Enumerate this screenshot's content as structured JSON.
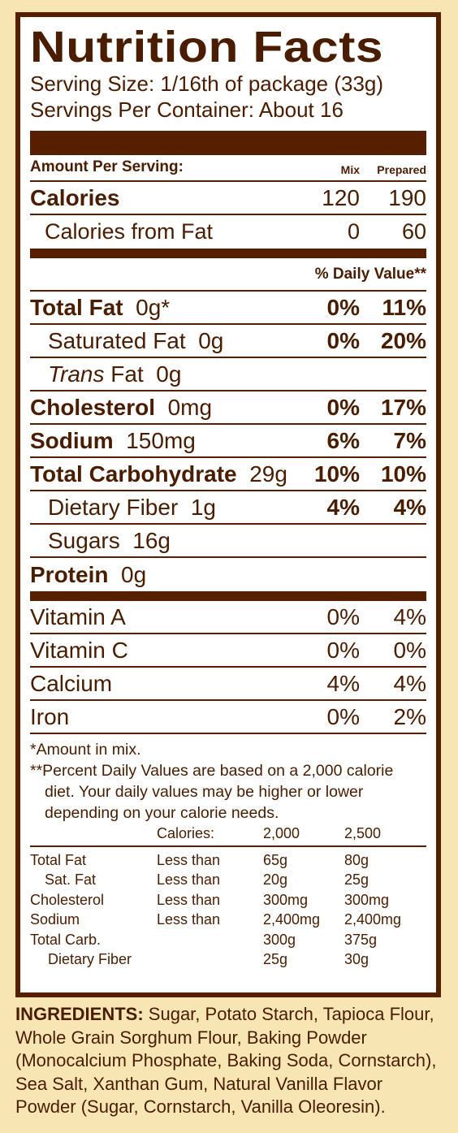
{
  "title": "Nutrition Facts",
  "serving_size": "Serving Size:  1/16th of package (33g)",
  "servings_per_container": "Servings Per Container:  About 16",
  "amount_header": "Amount Per Serving:",
  "col_mix": "Mix",
  "col_prepared": "Prepared",
  "calories": {
    "label": "Calories",
    "mix": "120",
    "prepared": "190"
  },
  "calories_fat": {
    "label": "Calories from Fat",
    "mix": "0",
    "prepared": "60"
  },
  "dv_header": "% Daily Value**",
  "nutrients": [
    {
      "name": "Total Fat",
      "amount": "0g*",
      "mix": "0%",
      "prepared": "11%"
    },
    {
      "name": "Saturated Fat",
      "amount": "0g",
      "mix": "0%",
      "prepared": "20%"
    },
    {
      "name": "Trans",
      "name_suffix": " Fat",
      "amount": "0g",
      "mix": "",
      "prepared": ""
    },
    {
      "name": "Cholesterol",
      "amount": "0mg",
      "mix": "0%",
      "prepared": "17%"
    },
    {
      "name": "Sodium",
      "amount": "150mg",
      "mix": "6%",
      "prepared": "7%"
    },
    {
      "name": "Total Carbohydrate",
      "amount": "29g",
      "mix": "10%",
      "prepared": "10%"
    },
    {
      "name": "Dietary Fiber",
      "amount": "1g",
      "mix": "4%",
      "prepared": "4%"
    },
    {
      "name": "Sugars",
      "amount": "16g",
      "mix": "",
      "prepared": ""
    },
    {
      "name": "Protein",
      "amount": "0g",
      "mix": "",
      "prepared": ""
    }
  ],
  "vitamins": [
    {
      "name": "Vitamin A",
      "mix": "0%",
      "prepared": "4%"
    },
    {
      "name": "Vitamin C",
      "mix": "0%",
      "prepared": "0%"
    },
    {
      "name": "Calcium",
      "mix": "4%",
      "prepared": "4%"
    },
    {
      "name": "Iron",
      "mix": "0%",
      "prepared": "2%"
    }
  ],
  "footnote_1": "*Amount in mix.",
  "footnote_2a": "**Percent Daily Values are based on a 2,000 calorie",
  "footnote_2b": "diet. Your daily values may be higher or lower",
  "footnote_2c": "depending on your calorie needs.",
  "dv_table": {
    "header": [
      "",
      "Calories:",
      "2,000",
      "2,500"
    ],
    "rows": [
      [
        "Total Fat",
        "Less than",
        "65g",
        "80g"
      ],
      [
        "Sat. Fat",
        "Less than",
        "20g",
        "25g"
      ],
      [
        "Cholesterol",
        "Less than",
        "300mg",
        "300mg"
      ],
      [
        "Sodium",
        "Less than",
        "2,400mg",
        "2,400mg"
      ],
      [
        "Total Carb.",
        "",
        "300g",
        "375g"
      ],
      [
        "Dietary Fiber",
        "",
        "25g",
        "30g"
      ]
    ]
  },
  "ingredients_label": "INGREDIENTS:",
  "ingredients_text": " Sugar, Potato Starch, Tapioca Flour, Whole Grain Sorghum Flour, Baking Powder (Monocalcium Phosphate, Baking Soda, Cornstarch), Sea Salt, Xanthan Gum, Natural Vanilla Flavor Powder (Sugar, Cornstarch, Vanilla Oleoresin).",
  "colors": {
    "brown": "#561f00",
    "background": "#f7e6b3",
    "panel": "#ffffff"
  }
}
